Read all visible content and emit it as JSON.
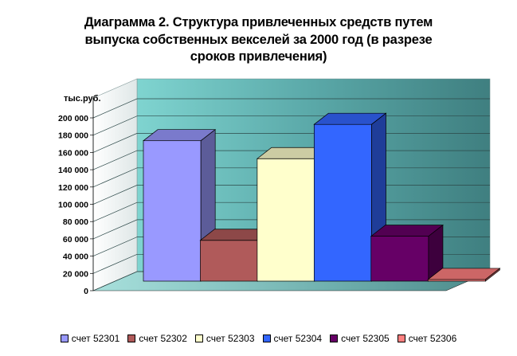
{
  "chart_data": {
    "type": "bar",
    "title_lines": [
      "Диаграмма 2. Структура  привлеченных средств путем",
      "выпуска собственных векселей за 2000 год (в разрезе",
      "сроков привлечения)"
    ],
    "ylabel": "тыс.руб.",
    "ylim": [
      0,
      200000
    ],
    "yticks": [
      {
        "value": 0,
        "label": "0"
      },
      {
        "value": 20000,
        "label": "20 000"
      },
      {
        "value": 40000,
        "label": "40 000"
      },
      {
        "value": 60000,
        "label": "60 000"
      },
      {
        "value": 80000,
        "label": "80 000"
      },
      {
        "value": 100000,
        "label": "100 000"
      },
      {
        "value": 120000,
        "label": "120 000"
      },
      {
        "value": 140000,
        "label": "140 000"
      },
      {
        "value": 160000,
        "label": "160 000"
      },
      {
        "value": 180000,
        "label": "180 000"
      },
      {
        "value": 200000,
        "label": "200 000"
      }
    ],
    "grid": true,
    "three_d": true,
    "legend_position": "bottom",
    "series": [
      {
        "name": "счет 52301",
        "value": 172000,
        "color": "#9999ff"
      },
      {
        "name": "счет 52302",
        "value": 50000,
        "color": "#b05a5a"
      },
      {
        "name": "счет 52303",
        "value": 150000,
        "color": "#ffffcc"
      },
      {
        "name": "счет 52304",
        "value": 192000,
        "color": "#3366ff"
      },
      {
        "name": "счет 52305",
        "value": 55000,
        "color": "#660066"
      },
      {
        "name": "счет 52306",
        "value": 2000,
        "color": "#ff8080"
      }
    ]
  }
}
